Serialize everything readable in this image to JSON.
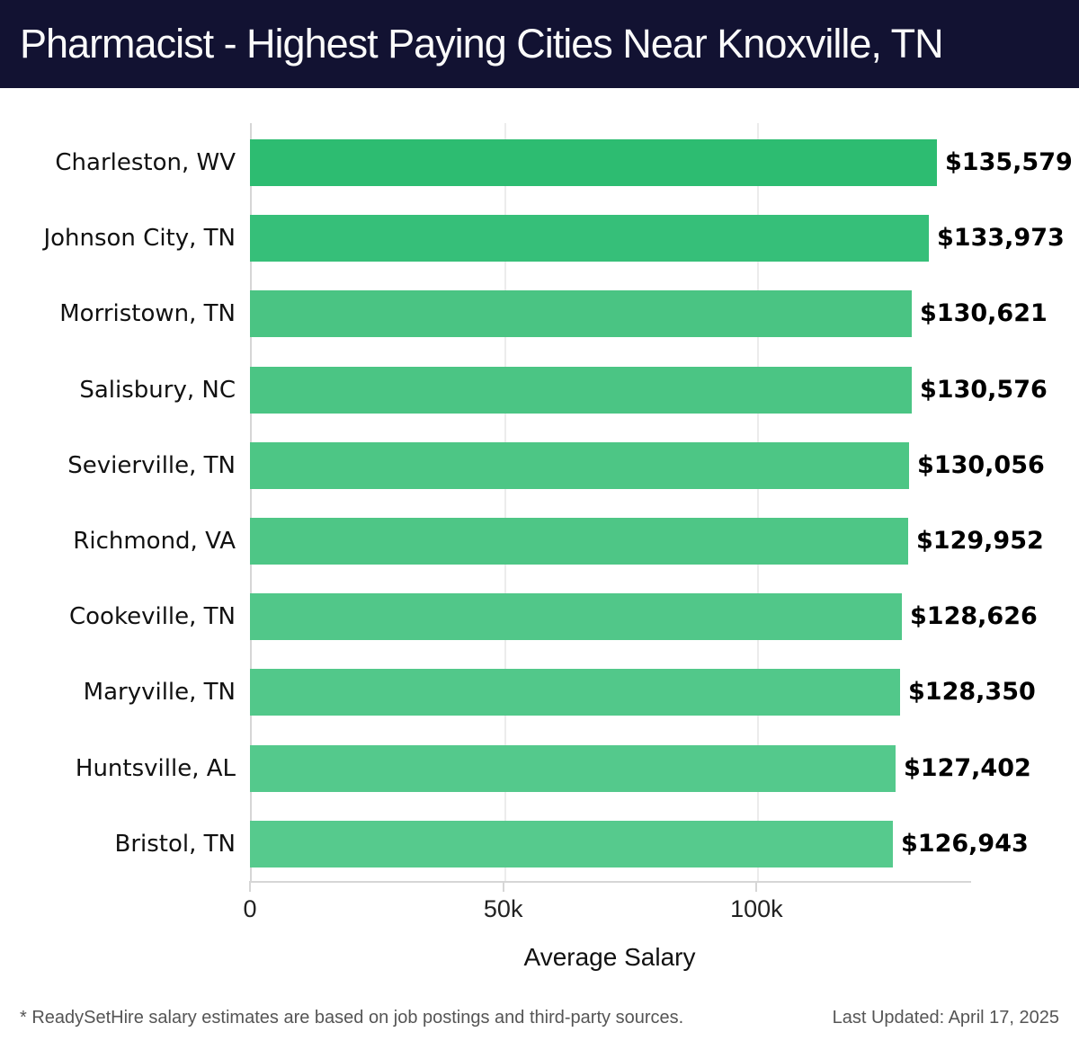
{
  "header": {
    "title": "Pharmacist - Highest Paying Cities Near Knoxville, TN",
    "bg_color": "#121232",
    "text_color": "#fafafa"
  },
  "chart_data": {
    "type": "bar",
    "orientation": "horizontal",
    "title": "Pharmacist - Highest Paying Cities Near Knoxville, TN",
    "xlabel": "Average Salary",
    "ylabel": "",
    "xlim": [
      0,
      142000
    ],
    "grid": "vertical",
    "legend": "none",
    "categories": [
      "Charleston, WV",
      "Johnson City, TN",
      "Morristown, TN",
      "Salisbury, NC",
      "Sevierville, TN",
      "Richmond, VA",
      "Cookeville, TN",
      "Maryville, TN",
      "Huntsville, AL",
      "Bristol, TN"
    ],
    "values": [
      135579,
      133973,
      130621,
      130576,
      130056,
      129952,
      128626,
      128350,
      127402,
      126943
    ],
    "value_labels": [
      "$135,579",
      "$133,973",
      "$130,621",
      "$130,576",
      "$130,056",
      "$129,952",
      "$128,626",
      "$128,350",
      "$127,402",
      "$126,943"
    ],
    "bar_colors": [
      "#2dbc71",
      "#36bf79",
      "#4ac483",
      "#4bc584",
      "#4dc685",
      "#4ec686",
      "#51c789",
      "#52c88a",
      "#54c98c",
      "#56ca8d"
    ],
    "x_ticks": [
      {
        "value": 0,
        "label": "0"
      },
      {
        "value": 50000,
        "label": "50k"
      },
      {
        "value": 100000,
        "label": "100k"
      }
    ],
    "axis_color": "#d6d6d6",
    "grid_color": "#ececec"
  },
  "footer": {
    "note": "* ReadySetHire salary estimates are based on job postings and third-party sources.",
    "last_updated": "Last Updated: April 17, 2025"
  }
}
